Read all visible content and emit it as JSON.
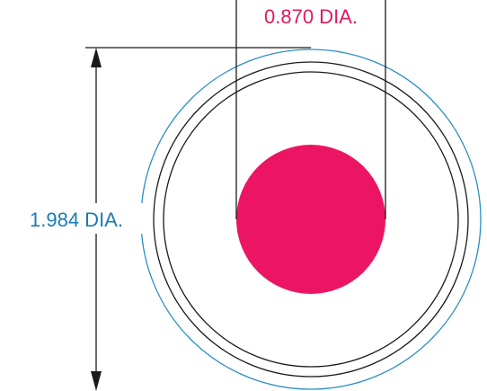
{
  "diagram": {
    "inner_diameter_label": "0.870 DIA.",
    "outer_diameter_label": "1.984 DIA.",
    "colors": {
      "inner_fill": "#ec1564",
      "inner_label": "#e0195e",
      "outer_label": "#1a7bb5",
      "outer_ring": "#2a8fc1",
      "rings": "#1a1a1a",
      "dimension_lines": "#1a1a1a"
    }
  }
}
